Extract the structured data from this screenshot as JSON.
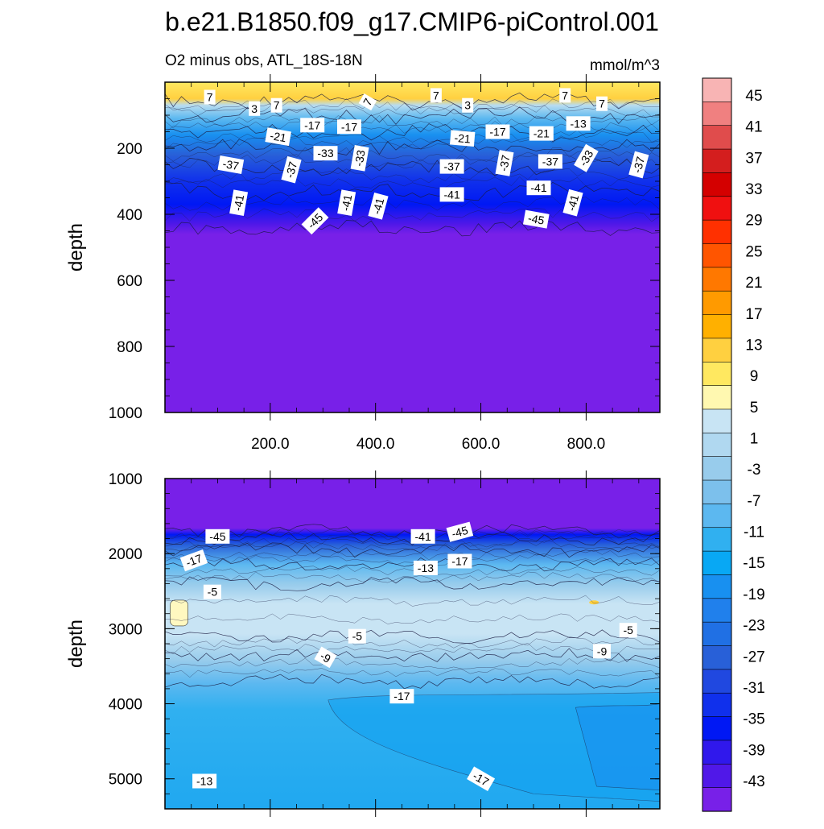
{
  "chart_data": {
    "type": "contour",
    "title": "b.e21.B1850.f09_g17.CMIP6-piControl.001",
    "subtitle_left": "O2 minus obs, ATL_18S-18N",
    "subtitle_right": "mmol/m^3",
    "x_range": [
      0,
      940
    ],
    "panels": [
      {
        "name": "upper",
        "ylabel": "depth",
        "ylim": [
          0,
          1000
        ],
        "yticks": [
          "200",
          "400",
          "600",
          "800",
          "1000"
        ],
        "xticks": [
          "200.0",
          "400.0",
          "600.0",
          "800.0"
        ],
        "depth_bands": [
          {
            "from": 0,
            "to": 55,
            "value": 7
          },
          {
            "from": 55,
            "to": 100,
            "value": -5
          },
          {
            "from": 100,
            "to": 150,
            "value": -15
          },
          {
            "from": 150,
            "to": 200,
            "value": -23
          },
          {
            "from": 200,
            "to": 260,
            "value": -31
          },
          {
            "from": 260,
            "to": 330,
            "value": -37
          },
          {
            "from": 330,
            "to": 440,
            "value": -41
          },
          {
            "from": 440,
            "to": 1000,
            "value": -45
          }
        ],
        "contour_labels": [
          {
            "text": "7",
            "x": 85,
            "y": 45,
            "rot": 0
          },
          {
            "text": "3",
            "x": 170,
            "y": 80,
            "rot": 0
          },
          {
            "text": "7",
            "x": 212,
            "y": 70,
            "rot": 0
          },
          {
            "text": "7",
            "x": 385,
            "y": 60,
            "rot": 60
          },
          {
            "text": "7",
            "x": 515,
            "y": 40,
            "rot": 0
          },
          {
            "text": "3",
            "x": 575,
            "y": 70,
            "rot": 0
          },
          {
            "text": "7",
            "x": 760,
            "y": 40,
            "rot": 0
          },
          {
            "text": "7",
            "x": 830,
            "y": 65,
            "rot": 0
          },
          {
            "text": "-17",
            "x": 280,
            "y": 130,
            "rot": 0
          },
          {
            "text": "-17",
            "x": 350,
            "y": 135,
            "rot": 0
          },
          {
            "text": "-21",
            "x": 215,
            "y": 165,
            "rot": -10
          },
          {
            "text": "-21",
            "x": 565,
            "y": 170,
            "rot": -5
          },
          {
            "text": "-17",
            "x": 632,
            "y": 150,
            "rot": 0
          },
          {
            "text": "-21",
            "x": 715,
            "y": 155,
            "rot": 0
          },
          {
            "text": "-13",
            "x": 785,
            "y": 125,
            "rot": 0
          },
          {
            "text": "-33",
            "x": 305,
            "y": 215,
            "rot": 0
          },
          {
            "text": "-33",
            "x": 370,
            "y": 230,
            "rot": 80
          },
          {
            "text": "-37",
            "x": 125,
            "y": 250,
            "rot": -10
          },
          {
            "text": "-37",
            "x": 240,
            "y": 265,
            "rot": 75
          },
          {
            "text": "-37",
            "x": 545,
            "y": 255,
            "rot": 0
          },
          {
            "text": "-37",
            "x": 645,
            "y": 245,
            "rot": 80
          },
          {
            "text": "-37",
            "x": 732,
            "y": 240,
            "rot": 0
          },
          {
            "text": "-33",
            "x": 800,
            "y": 230,
            "rot": 60
          },
          {
            "text": "-37",
            "x": 900,
            "y": 250,
            "rot": 75
          },
          {
            "text": "-41",
            "x": 140,
            "y": 365,
            "rot": 80
          },
          {
            "text": "-41",
            "x": 345,
            "y": 365,
            "rot": 80
          },
          {
            "text": "-41",
            "x": 405,
            "y": 375,
            "rot": 75
          },
          {
            "text": "-41",
            "x": 545,
            "y": 340,
            "rot": 0
          },
          {
            "text": "-41",
            "x": 710,
            "y": 320,
            "rot": 0
          },
          {
            "text": "-41",
            "x": 775,
            "y": 365,
            "rot": 75
          },
          {
            "text": "-45",
            "x": 285,
            "y": 420,
            "rot": 45
          },
          {
            "text": "-45",
            "x": 705,
            "y": 415,
            "rot": -10
          }
        ]
      },
      {
        "name": "lower",
        "ylabel": "depth",
        "ylim": [
          1000,
          5400
        ],
        "yticks": [
          "1000",
          "2000",
          "3000",
          "4000",
          "5000"
        ],
        "depth_bands": [
          {
            "from": 1000,
            "to": 1700,
            "value": -45
          },
          {
            "from": 1700,
            "to": 1800,
            "value": -39
          },
          {
            "from": 1800,
            "to": 1950,
            "value": -27
          },
          {
            "from": 1950,
            "to": 2150,
            "value": -17
          },
          {
            "from": 2150,
            "to": 2400,
            "value": -9
          },
          {
            "from": 2400,
            "to": 3100,
            "value": -3
          },
          {
            "from": 3100,
            "to": 3350,
            "value": -7
          },
          {
            "from": 3350,
            "to": 3700,
            "value": -11
          },
          {
            "from": 3700,
            "to": 5400,
            "value": -15
          }
        ],
        "contour_labels": [
          {
            "text": "-45",
            "x": 100,
            "y": 1770,
            "rot": 0
          },
          {
            "text": "-41",
            "x": 490,
            "y": 1770,
            "rot": 0
          },
          {
            "text": "-45",
            "x": 560,
            "y": 1710,
            "rot": 15
          },
          {
            "text": "-17",
            "x": 55,
            "y": 2090,
            "rot": 20
          },
          {
            "text": "-17",
            "x": 560,
            "y": 2100,
            "rot": 0
          },
          {
            "text": "-13",
            "x": 495,
            "y": 2190,
            "rot": 0
          },
          {
            "text": "-5",
            "x": 90,
            "y": 2510,
            "rot": 0
          },
          {
            "text": "-5",
            "x": 365,
            "y": 3100,
            "rot": 0
          },
          {
            "text": "-5",
            "x": 880,
            "y": 3020,
            "rot": 0
          },
          {
            "text": "-9",
            "x": 305,
            "y": 3380,
            "rot": -30
          },
          {
            "text": "-9",
            "x": 830,
            "y": 3300,
            "rot": 0
          },
          {
            "text": "-17",
            "x": 450,
            "y": 3900,
            "rot": 0
          },
          {
            "text": "-13",
            "x": 75,
            "y": 5030,
            "rot": 0
          },
          {
            "text": "-17",
            "x": 600,
            "y": 5000,
            "rot": -30
          }
        ]
      }
    ],
    "colorbar": {
      "levels": [
        45,
        41,
        37,
        33,
        29,
        25,
        21,
        17,
        13,
        9,
        5,
        1,
        -3,
        -7,
        -11,
        -15,
        -19,
        -23,
        -27,
        -31,
        -35,
        -39,
        -43
      ],
      "colors": [
        "#f8b4b4",
        "#f08080",
        "#e04c4c",
        "#d41e1e",
        "#d40000",
        "#f01010",
        "#ff3000",
        "#ff5500",
        "#ff7800",
        "#ff9a00",
        "#ffb000",
        "#ffd040",
        "#ffe860",
        "#fff8b0",
        "#c8e4f4",
        "#b0d8f0",
        "#98ccec",
        "#7cc0ec",
        "#5cb8f0",
        "#30b0f0",
        "#08a8f4",
        "#1890f0",
        "#2080ec",
        "#2070e4",
        "#2860d8",
        "#2048e0",
        "#1030ec",
        "#0018f4",
        "#3018ec",
        "#5018e8",
        "#7820e8"
      ]
    }
  }
}
